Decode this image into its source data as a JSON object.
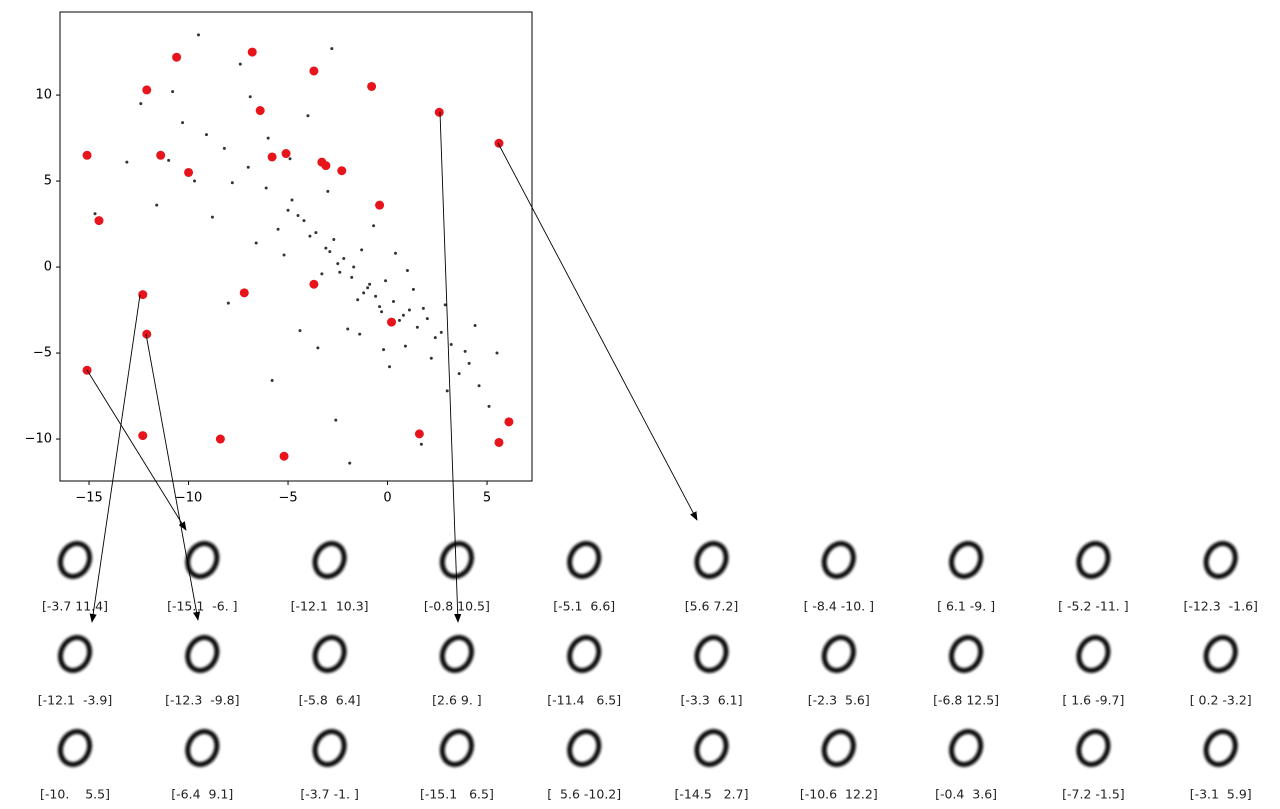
{
  "chart_data": {
    "type": "scatter",
    "xlim": [
      -16.46,
      7.26
    ],
    "ylim": [
      -12.44,
      14.83
    ],
    "xticks": [
      {
        "value": -15,
        "label": "−15"
      },
      {
        "value": -10,
        "label": "−10"
      },
      {
        "value": -5,
        "label": "−5"
      },
      0,
      5
    ],
    "yticks": [
      {
        "value": -10,
        "label": "−10"
      },
      {
        "value": -5,
        "label": "−5"
      },
      0,
      5,
      10
    ],
    "series": [
      {
        "color": "#000000",
        "x": [
          -1.2,
          -2.5,
          -0.4,
          -3.1,
          0.8,
          -1.8,
          -2.9,
          1.5,
          -0.9,
          -3.6,
          0.3,
          -2.2,
          -1.5,
          2.4,
          -4.2,
          -0.1,
          1.1,
          -2.7,
          3.2,
          -1.0,
          -5.0,
          0.6,
          2.0,
          -3.9,
          -1.7,
          4.1,
          -0.6,
          -4.8,
          1.8,
          -2.4,
          3.6,
          -6.1,
          -0.3,
          2.7,
          -5.5,
          -1.3,
          4.6,
          -7.0,
          0.9,
          -3.3,
          -8.2,
          5.1,
          -2.0,
          -6.6,
          3.9,
          -9.1,
          1.3,
          -4.5,
          -10.3,
          2.2,
          -7.8,
          4.4,
          -11.0,
          -5.2,
          0.1,
          -12.4,
          -8.8,
          -3.0,
          3.0,
          -9.7,
          -6.0,
          -13.1,
          -4.0,
          5.5,
          -2.6,
          -10.8,
          -7.4,
          1.7,
          -1.9,
          -0.7,
          -4.4,
          -3.5,
          -5.8,
          -8.0,
          -11.6,
          -14.7,
          -6.9,
          -9.5,
          -2.8,
          -4.9,
          0.4,
          1.0,
          -1.4,
          2.9,
          -0.2
        ],
        "y": [
          -1.5,
          0.2,
          -2.3,
          1.1,
          -2.8,
          -0.6,
          0.9,
          -3.5,
          -1.0,
          2.0,
          -2.0,
          0.5,
          -1.9,
          -4.1,
          2.7,
          -0.8,
          -2.5,
          1.6,
          -4.5,
          -1.2,
          3.3,
          -3.1,
          -3.0,
          1.8,
          0.0,
          -5.6,
          -1.7,
          3.9,
          -2.4,
          -0.3,
          -6.2,
          4.6,
          -2.6,
          -3.8,
          2.2,
          1.0,
          -6.9,
          5.8,
          -4.6,
          -0.4,
          6.9,
          -8.1,
          -3.6,
          1.4,
          -4.9,
          7.7,
          -1.3,
          3.0,
          8.4,
          -5.3,
          4.9,
          -3.4,
          6.2,
          0.7,
          -5.8,
          9.5,
          2.9,
          4.4,
          -7.2,
          5.0,
          7.5,
          6.1,
          8.8,
          -5.0,
          -8.9,
          10.2,
          11.8,
          -10.3,
          -11.4,
          2.4,
          -3.7,
          -4.7,
          -6.6,
          -2.1,
          3.6,
          3.1,
          9.9,
          13.5,
          12.7,
          6.3,
          0.8,
          -0.2,
          -3.9,
          -2.2,
          -4.8
        ]
      },
      {
        "color": "#e8141c",
        "x": [
          -3.7,
          -15.1,
          -12.1,
          -0.8,
          -5.1,
          5.6,
          -8.4,
          6.1,
          -5.2,
          -12.3,
          -12.1,
          -12.3,
          -5.8,
          2.6,
          -11.4,
          -3.3,
          -2.3,
          -6.8,
          1.6,
          0.2,
          -10,
          -6.4,
          -3.7,
          -15.1,
          5.6,
          -14.5,
          -10.6,
          -0.4,
          -7.2,
          -3.1
        ],
        "y": [
          11.4,
          -6,
          10.3,
          10.5,
          6.6,
          7.2,
          -10,
          -9,
          -11,
          -1.6,
          -3.9,
          -9.8,
          6.4,
          9,
          6.5,
          6.1,
          5.6,
          12.5,
          -9.7,
          -3.2,
          5.5,
          9.1,
          -1,
          6.5,
          -10.2,
          2.7,
          12.2,
          3.6,
          -1.5,
          5.9
        ],
        "value_labels": [
          "[-3.7 11.4]",
          "[-15.1  -6. ]",
          "[-12.1  10.3]",
          "[-0.8 10.5]",
          "[-5.1  6.6]",
          "[5.6 7.2]",
          "[ -8.4 -10. ]",
          "[ 6.1 -9. ]",
          "[ -5.2 -11. ]",
          "[-12.3  -1.6]",
          "[-12.1  -3.9]",
          "[-12.3  -9.8]",
          "[-5.8  6.4]",
          "[2.6 9. ]",
          "[-11.4   6.5]",
          "[-3.3  6.1]",
          "[-2.3  5.6]",
          "[-6.8 12.5]",
          "[ 1.6 -9.7]",
          "[ 0.2 -3.2]",
          "[-10.    5.5]",
          "[-6.4  9.1]",
          "[-3.7 -1. ]",
          "[-15.1   6.5]",
          "[  5.6 -10.2]",
          "[-14.5   2.7]",
          "[-10.6  12.2]",
          "[-0.4  3.6]",
          "[-7.2 -1.5]",
          "[-3.1  5.9]"
        ]
      }
    ]
  }
}
